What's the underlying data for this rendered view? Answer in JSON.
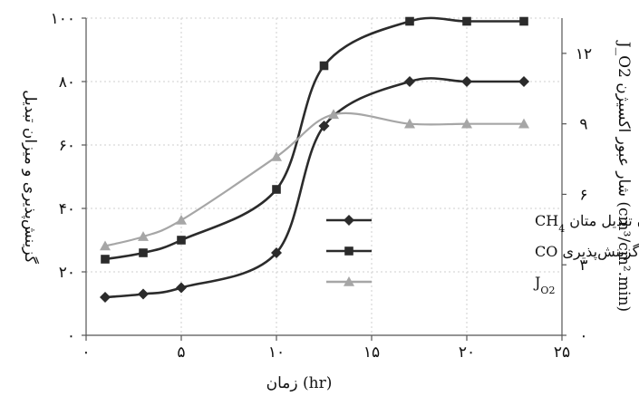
{
  "chart_data": {
    "type": "line",
    "xlabel": "زمان (hr)",
    "ylabel_left": "گزینش‌پذیری و میزان تبدیل",
    "ylabel_right": "J_O2 شار عبور اکسیژن (cm³/cm².min)",
    "xlim": [
      0,
      25
    ],
    "ylim_left": [
      0,
      100
    ],
    "ylim_right": [
      0,
      13.5
    ],
    "x_ticks": [
      {
        "value": 0,
        "label": "۰"
      },
      {
        "value": 5,
        "label": "۵"
      },
      {
        "value": 10,
        "label": "۱۰"
      },
      {
        "value": 15,
        "label": "۱۵"
      },
      {
        "value": 20,
        "label": "۲۰"
      },
      {
        "value": 25,
        "label": "۲۵"
      }
    ],
    "y_left_ticks": [
      {
        "value": 0,
        "label": "۰"
      },
      {
        "value": 20,
        "label": "۲۰"
      },
      {
        "value": 40,
        "label": "۴۰"
      },
      {
        "value": 60,
        "label": "۶۰"
      },
      {
        "value": 80,
        "label": "۸۰"
      },
      {
        "value": 100,
        "label": "۱۰۰"
      }
    ],
    "y_right_ticks": [
      {
        "value": 0,
        "label": "۰"
      },
      {
        "value": 3,
        "label": "۳"
      },
      {
        "value": 6,
        "label": "۶"
      },
      {
        "value": 9,
        "label": "۹"
      },
      {
        "value": 12,
        "label": "۱۲"
      }
    ],
    "series": [
      {
        "name": "میزان تبدیل متان CH4",
        "legend_main": "میزان تبدیل متان CH",
        "legend_sub": "4",
        "axis": "left",
        "marker": "diamond",
        "color": "#2b2b2b",
        "x": [
          1,
          3,
          5,
          10,
          12.5,
          17,
          20,
          23
        ],
        "y": [
          12,
          13,
          15,
          26,
          66,
          80,
          80,
          80
        ]
      },
      {
        "name": "گزینش‌پذیری CO",
        "legend_main": "گزینش‌پذیری CO",
        "legend_sub": "",
        "axis": "left",
        "marker": "square",
        "color": "#2b2b2b",
        "x": [
          1,
          3,
          5,
          10,
          12.5,
          17,
          20,
          23
        ],
        "y": [
          24,
          26,
          30,
          46,
          85,
          99,
          99,
          99
        ]
      },
      {
        "name": "J O2",
        "legend_main": "J",
        "legend_sub": "O2",
        "axis": "right",
        "marker": "triangle",
        "color": "#a6a6a6",
        "x": [
          1,
          3,
          5,
          10,
          13,
          17,
          20,
          23
        ],
        "y": [
          3.8,
          4.2,
          4.9,
          7.6,
          9.4,
          9.0,
          9.0,
          9.0
        ]
      }
    ]
  }
}
